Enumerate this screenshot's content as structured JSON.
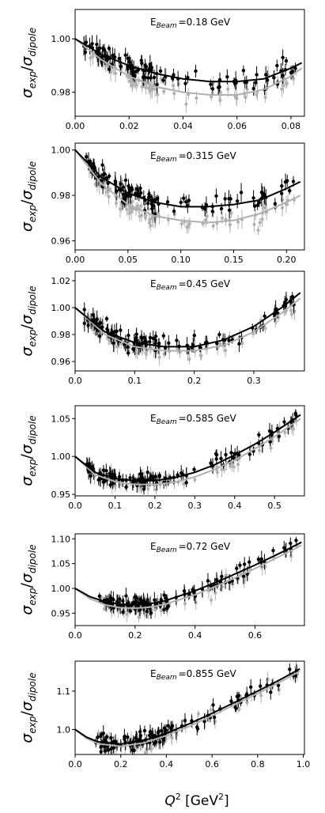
{
  "figure": {
    "xlabel_main": "Q",
    "xlabel_sup": "2",
    "xlabel_unit_open": " [GeV",
    "xlabel_unit_sup": "2",
    "xlabel_unit_close": "]",
    "ylabel_sigma": "σ",
    "ylabel_num_sub": "exp",
    "ylabel_slash": "/",
    "ylabel_den_sub": "dipole",
    "beam_prefix": "E",
    "beam_sub": "Beam",
    "series_colors": {
      "data": "#000000",
      "model": "#b0b0b0"
    }
  },
  "chart_data": [
    {
      "type": "scatter",
      "beam_value": "=0.18 GeV",
      "xlim": [
        0.0,
        0.085
      ],
      "ylim": [
        0.971,
        1.011
      ],
      "xticks": [
        0.0,
        0.02,
        0.04,
        0.06,
        0.08
      ],
      "xtick_labels": [
        "0.00",
        "0.02",
        "0.04",
        "0.06",
        "0.08"
      ],
      "yticks": [
        0.98,
        1.0
      ],
      "ytick_labels": [
        "0.98",
        "1.00"
      ],
      "data_x_range": [
        0.003,
        0.083
      ],
      "curves": [
        {
          "name": "fit",
          "x": [
            0.0,
            0.01,
            0.02,
            0.03,
            0.04,
            0.05,
            0.06,
            0.07,
            0.08,
            0.084
          ],
          "y": [
            1.0,
            0.994,
            0.99,
            0.987,
            0.985,
            0.984,
            0.984,
            0.985,
            0.989,
            0.991
          ]
        },
        {
          "name": "fit-2",
          "x": [
            0.0,
            0.01,
            0.02,
            0.03,
            0.04,
            0.05,
            0.06,
            0.07,
            0.08,
            0.084
          ],
          "y": [
            1.0,
            0.992,
            0.986,
            0.982,
            0.98,
            0.979,
            0.979,
            0.981,
            0.986,
            0.989
          ]
        }
      ]
    },
    {
      "type": "scatter",
      "beam_value": "=0.315 GeV",
      "xlim": [
        0.0,
        0.217
      ],
      "ylim": [
        0.956,
        1.003
      ],
      "xticks": [
        0.0,
        0.05,
        0.1,
        0.15,
        0.2
      ],
      "xtick_labels": [
        "0.00",
        "0.05",
        "0.10",
        "0.15",
        "0.20"
      ],
      "yticks": [
        0.96,
        0.98,
        1.0
      ],
      "ytick_labels": [
        "0.96",
        "0.98",
        "1.00"
      ],
      "data_x_range": [
        0.01,
        0.213
      ],
      "curves": [
        {
          "name": "fit",
          "x": [
            0.0,
            0.025,
            0.05,
            0.075,
            0.1,
            0.125,
            0.15,
            0.175,
            0.2,
            0.213
          ],
          "y": [
            1.0,
            0.988,
            0.981,
            0.977,
            0.975,
            0.975,
            0.976,
            0.978,
            0.983,
            0.986
          ]
        },
        {
          "name": "fit-2",
          "x": [
            0.0,
            0.025,
            0.05,
            0.075,
            0.1,
            0.125,
            0.15,
            0.175,
            0.2,
            0.213
          ],
          "y": [
            1.0,
            0.985,
            0.976,
            0.971,
            0.969,
            0.968,
            0.969,
            0.972,
            0.977,
            0.98
          ]
        }
      ]
    },
    {
      "type": "scatter",
      "beam_value": "=0.45 GeV",
      "xlim": [
        0.0,
        0.385
      ],
      "ylim": [
        0.953,
        1.027
      ],
      "xticks": [
        0.0,
        0.1,
        0.2,
        0.3
      ],
      "xtick_labels": [
        "0.0",
        "0.1",
        "0.2",
        "0.3"
      ],
      "yticks": [
        0.96,
        0.98,
        1.0,
        1.02
      ],
      "ytick_labels": [
        "0.96",
        "0.98",
        "1.00",
        "1.02"
      ],
      "data_x_range": [
        0.015,
        0.375
      ],
      "curves": [
        {
          "name": "fit",
          "x": [
            0.0,
            0.05,
            0.1,
            0.15,
            0.2,
            0.25,
            0.3,
            0.35,
            0.378
          ],
          "y": [
            1.0,
            0.982,
            0.974,
            0.971,
            0.971,
            0.976,
            0.986,
            1.001,
            1.011
          ]
        },
        {
          "name": "fit-2",
          "x": [
            0.0,
            0.05,
            0.1,
            0.15,
            0.2,
            0.25,
            0.3,
            0.35,
            0.378
          ],
          "y": [
            1.0,
            0.98,
            0.971,
            0.968,
            0.968,
            0.972,
            0.982,
            0.997,
            1.007
          ]
        }
      ]
    },
    {
      "type": "scatter",
      "beam_value": "=0.585 GeV",
      "xlim": [
        0.0,
        0.575
      ],
      "ylim": [
        0.948,
        1.067
      ],
      "xticks": [
        0.0,
        0.1,
        0.2,
        0.3,
        0.4,
        0.5
      ],
      "xtick_labels": [
        "0.0",
        "0.1",
        "0.2",
        "0.3",
        "0.4",
        "0.5"
      ],
      "yticks": [
        0.95,
        1.0,
        1.05
      ],
      "ytick_labels": [
        "0.95",
        "1.00",
        "1.05"
      ],
      "data_x_range": [
        0.025,
        0.565
      ],
      "curves": [
        {
          "name": "fit",
          "x": [
            0.0,
            0.05,
            0.1,
            0.15,
            0.2,
            0.25,
            0.3,
            0.35,
            0.4,
            0.45,
            0.5,
            0.565
          ],
          "y": [
            1.0,
            0.979,
            0.971,
            0.968,
            0.968,
            0.972,
            0.979,
            0.989,
            1.002,
            1.016,
            1.032,
            1.055
          ]
        },
        {
          "name": "fit-2",
          "x": [
            0.0,
            0.05,
            0.1,
            0.15,
            0.2,
            0.25,
            0.3,
            0.35,
            0.4,
            0.45,
            0.5,
            0.565
          ],
          "y": [
            1.0,
            0.976,
            0.967,
            0.963,
            0.963,
            0.966,
            0.973,
            0.983,
            0.995,
            1.01,
            1.026,
            1.05
          ]
        }
      ]
    },
    {
      "type": "scatter",
      "beam_value": "=0.72 GeV",
      "xlim": [
        0.0,
        0.765
      ],
      "ylim": [
        0.925,
        1.11
      ],
      "xticks": [
        0.0,
        0.2,
        0.4,
        0.6
      ],
      "xtick_labels": [
        "0.0",
        "0.2",
        "0.4",
        "0.6"
      ],
      "yticks": [
        0.95,
        1.0,
        1.05,
        1.1
      ],
      "ytick_labels": [
        "0.95",
        "1.00",
        "1.05",
        "1.10"
      ],
      "data_x_range": [
        0.08,
        0.755
      ],
      "curves": [
        {
          "name": "fit",
          "x": [
            0.0,
            0.05,
            0.1,
            0.15,
            0.2,
            0.25,
            0.3,
            0.4,
            0.5,
            0.6,
            0.7,
            0.755
          ],
          "y": [
            1.0,
            0.983,
            0.973,
            0.968,
            0.967,
            0.969,
            0.975,
            0.995,
            1.02,
            1.047,
            1.076,
            1.093
          ]
        },
        {
          "name": "fit-2",
          "x": [
            0.0,
            0.05,
            0.1,
            0.15,
            0.2,
            0.25,
            0.3,
            0.4,
            0.5,
            0.6,
            0.7,
            0.755
          ],
          "y": [
            1.0,
            0.979,
            0.967,
            0.961,
            0.96,
            0.962,
            0.968,
            0.987,
            1.012,
            1.04,
            1.07,
            1.087
          ]
        }
      ]
    },
    {
      "type": "scatter",
      "beam_value": "=0.855 GeV",
      "xlim": [
        0.0,
        1.005
      ],
      "ylim": [
        0.935,
        1.178
      ],
      "xticks": [
        0.0,
        0.2,
        0.4,
        0.6,
        0.8,
        1.0
      ],
      "xtick_labels": [
        "0.0",
        "0.2",
        "0.4",
        "0.6",
        "0.8",
        "1.0"
      ],
      "yticks": [
        1.0,
        1.1
      ],
      "ytick_labels": [
        "1.0",
        "1.1"
      ],
      "data_x_range": [
        0.09,
        0.985
      ],
      "curves": [
        {
          "name": "fit",
          "x": [
            0.0,
            0.05,
            0.1,
            0.2,
            0.3,
            0.4,
            0.5,
            0.6,
            0.7,
            0.8,
            0.9,
            0.985
          ],
          "y": [
            1.0,
            0.98,
            0.968,
            0.962,
            0.971,
            0.99,
            1.015,
            1.042,
            1.071,
            1.1,
            1.13,
            1.158
          ]
        },
        {
          "name": "fit-2",
          "x": [
            0.0,
            0.05,
            0.1,
            0.2,
            0.3,
            0.4,
            0.5,
            0.6,
            0.7,
            0.8,
            0.9,
            0.985
          ],
          "y": [
            1.0,
            0.977,
            0.963,
            0.956,
            0.965,
            0.984,
            1.008,
            1.036,
            1.065,
            1.094,
            1.124,
            1.152
          ]
        }
      ]
    }
  ]
}
